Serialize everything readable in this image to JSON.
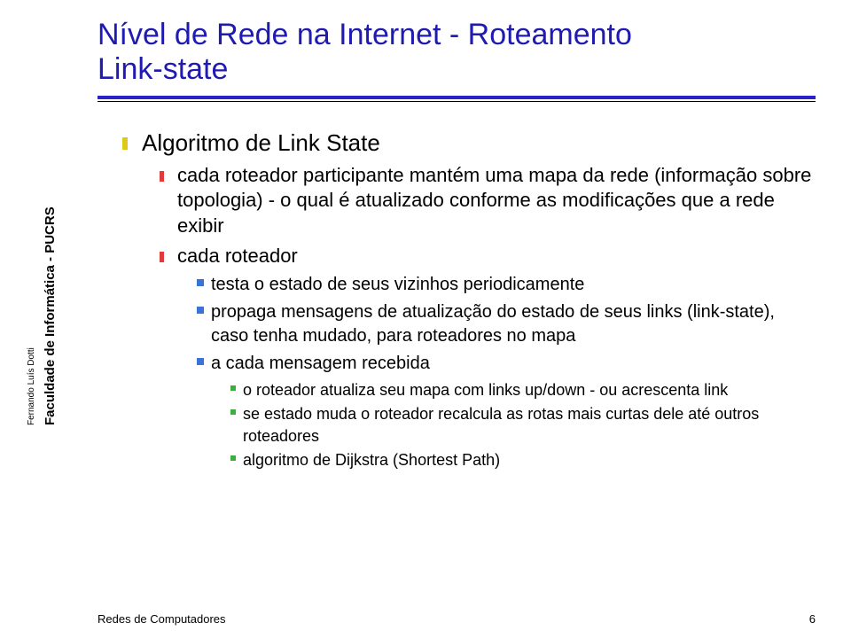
{
  "title": {
    "line1": "Nível de Rede na Internet - Roteamento",
    "line2": "Link-state"
  },
  "colors": {
    "title": "#1f1ab0",
    "hr_thick": "#2a22c8",
    "hr_thin": "#000000",
    "bullet_lvl1": "#e0c81a",
    "bullet_lvl2": "#e03a3a",
    "bullet_lvl3": "#3a72d8",
    "bullet_lvl4": "#3ab03a",
    "text": "#000000",
    "background": "#ffffff"
  },
  "typography": {
    "title_fontsize": 34,
    "lvl1_fontsize": 26,
    "lvl2_fontsize": 22,
    "lvl3_fontsize": 20,
    "lvl4_fontsize": 18,
    "footer_fontsize": 13,
    "side_label_fontsize": 15,
    "side_author_fontsize": 10,
    "font_family": "Arial"
  },
  "content": {
    "lvl1_0": "Algoritmo de Link State",
    "lvl2_0": "cada roteador participante mantém uma mapa da rede (informação sobre topologia) - o qual é atualizado conforme as modificações que a rede exibir",
    "lvl2_1": "cada roteador",
    "lvl3_0": "testa o estado de seus vizinhos periodicamente",
    "lvl3_1": "propaga mensagens de atualização do estado de seus links (link-state), caso tenha mudado, para roteadores no mapa",
    "lvl3_2": "a cada mensagem recebida",
    "lvl4_0": "o roteador atualiza seu mapa com links up/down - ou acrescenta link",
    "lvl4_1": "se estado muda o roteador recalcula as rotas mais curtas dele até outros roteadores",
    "lvl4_2": "algoritmo de Dijkstra (Shortest Path)"
  },
  "side": {
    "label": "Faculdade de Informática - PUCRS",
    "author": "Fernando Luís Dotti"
  },
  "footer": {
    "text": "Redes de Computadores",
    "page": "6"
  }
}
